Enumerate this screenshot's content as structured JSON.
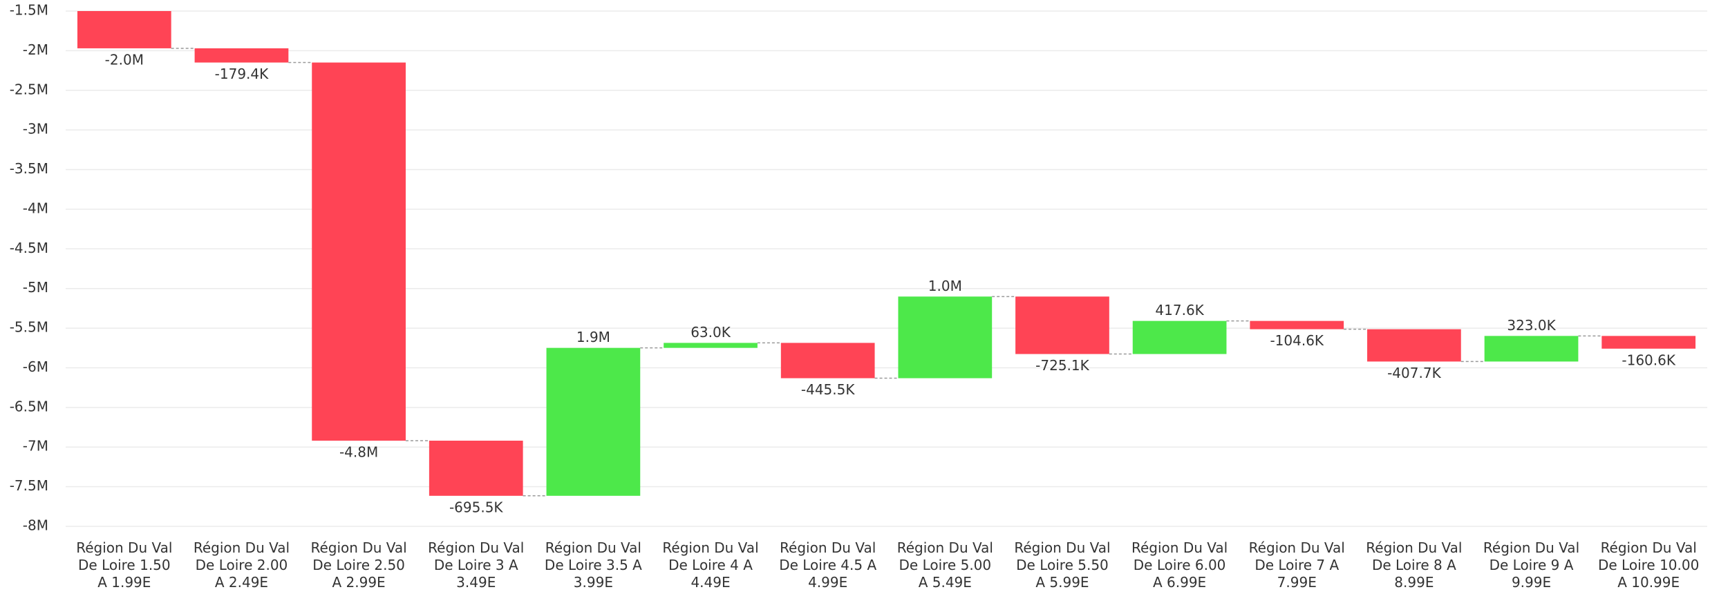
{
  "chart_data": {
    "type": "waterfall",
    "categories": [
      "Région Du Val De Loire 1.50 A 1.99E",
      "Région Du Val De Loire 2.00 A 2.49E",
      "Région Du Val De Loire 2.50 A 2.99E",
      "Région Du Val De Loire 3 A 3.49E",
      "Région Du Val De Loire 3.5 A 3.99E",
      "Région Du Val De Loire 4 A 4.49E",
      "Région Du Val De Loire 4.5 A 4.99E",
      "Région Du Val De Loire 5.00 A 5.49E",
      "Région Du Val De Loire 5.50 A 5.99E",
      "Région Du Val De Loire 6.00 A 6.99E",
      "Région Du Val De Loire 7 A 7.99E",
      "Région Du Val De Loire 8 A 8.99E",
      "Région Du Val De Loire 9 A 9.99E",
      "Région Du Val De Loire 10.00 A 10.99E"
    ],
    "values": [
      -1970000,
      -179400,
      -4770000,
      -695500,
      1866000,
      63000,
      -445500,
      1030000,
      -725100,
      417600,
      -104600,
      -407700,
      323000,
      -160600
    ],
    "value_labels": [
      "-2.0M",
      "-179.4K",
      "-4.8M",
      "-695.5K",
      "1.9M",
      "63.0K",
      "-445.5K",
      "1.0M",
      "-725.1K",
      "417.6K",
      "-104.6K",
      "-407.7K",
      "323.0K",
      "-160.6K"
    ],
    "increase_color": "#4de84a",
    "decrease_color": "#ff4455",
    "ylim": [
      -8000000,
      -1500000
    ],
    "yticks": [
      {
        "value": -8000000,
        "label": "-8M"
      },
      {
        "value": -7500000,
        "label": "-7.5M"
      },
      {
        "value": -7000000,
        "label": "-7M"
      },
      {
        "value": -6500000,
        "label": "-6.5M"
      },
      {
        "value": -6000000,
        "label": "-6M"
      },
      {
        "value": -5500000,
        "label": "-5.5M"
      },
      {
        "value": -5000000,
        "label": "-5M"
      },
      {
        "value": -4500000,
        "label": "-4.5M"
      },
      {
        "value": -4000000,
        "label": "-4M"
      },
      {
        "value": -3500000,
        "label": "-3.5M"
      },
      {
        "value": -3000000,
        "label": "-3M"
      },
      {
        "value": -2500000,
        "label": "-2.5M"
      },
      {
        "value": -2000000,
        "label": "-2M"
      },
      {
        "value": -1500000,
        "label": "-1.5M"
      }
    ],
    "grid": true
  }
}
